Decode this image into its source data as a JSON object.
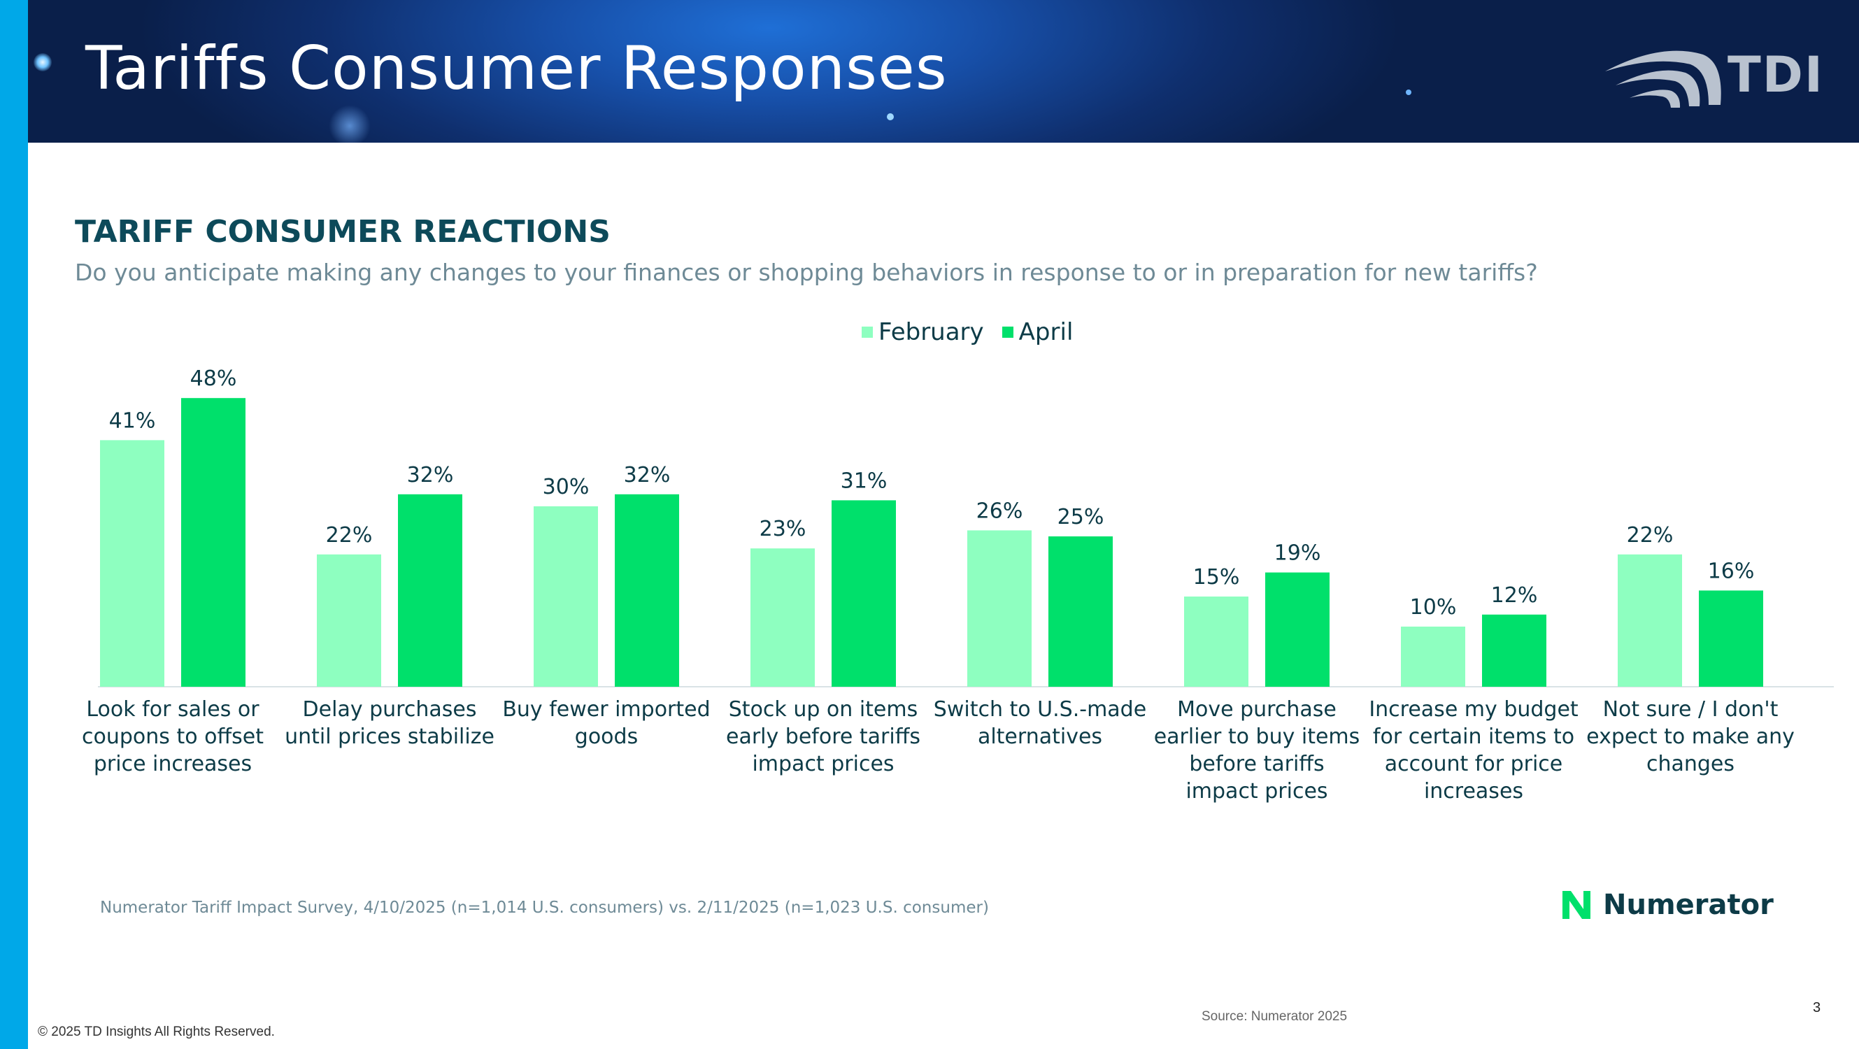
{
  "header": {
    "title": "Tariffs Consumer Responses",
    "logo_text": "TDI"
  },
  "section": {
    "title": "TARIFF CONSUMER REACTIONS",
    "subtitle": "Do you anticipate making any changes to your finances or shopping behaviors in response to or in preparation for new tariffs?"
  },
  "colors": {
    "february": "#8effc0",
    "april": "#00e06b",
    "title": "#0d4a5a",
    "side_bar": "#00a8e8"
  },
  "chart_data": {
    "type": "bar",
    "legend_position": "top-center",
    "grid": false,
    "ylim": [
      0,
      50
    ],
    "categories": [
      [
        "Look for sales or",
        "coupons to offset",
        "price increases"
      ],
      [
        "Delay purchases",
        "until prices stabilize"
      ],
      [
        "Buy fewer imported",
        "goods"
      ],
      [
        "Stock up on items",
        "early before tariffs",
        "impact prices"
      ],
      [
        "Switch to U.S.-made",
        "alternatives"
      ],
      [
        "Move purchase",
        "earlier to buy items",
        "before tariffs",
        "impact prices"
      ],
      [
        "Increase my budget",
        "for certain items to",
        "account for price",
        "increases"
      ],
      [
        "Not sure / I don't",
        "expect to make any",
        "changes"
      ]
    ],
    "series": [
      {
        "name": "February",
        "values": [
          41,
          22,
          30,
          23,
          26,
          15,
          10,
          22
        ],
        "labels": [
          "41%",
          "22%",
          "30%",
          "23%",
          "26%",
          "15%",
          "10%",
          "22%"
        ]
      },
      {
        "name": "April",
        "values": [
          48,
          32,
          32,
          31,
          25,
          19,
          12,
          16
        ],
        "labels": [
          "48%",
          "32%",
          "32%",
          "31%",
          "25%",
          "19%",
          "12%",
          "16%"
        ]
      }
    ]
  },
  "footnote": "Numerator Tariff Impact Survey, 4/10/2025 (n=1,014 U.S. consumers) vs. 2/11/2025 (n=1,023 U.S. consumer)",
  "numerator_logo_text": "Numerator",
  "source": "Source: Numerator 2025",
  "page_number": "3",
  "copyright": "© 2025 TD Insights All Rights Reserved."
}
